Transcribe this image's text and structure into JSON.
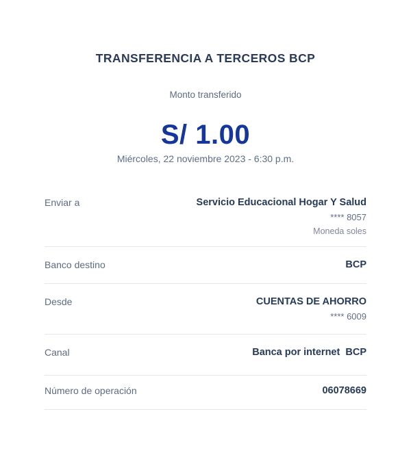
{
  "header": {
    "title": "TRANSFERENCIA A TERCEROS BCP"
  },
  "amount_section": {
    "label": "Monto transferido",
    "amount": "S/ 1.00",
    "datetime": "Miércoles, 22 noviembre 2023 - 6:30 p.m."
  },
  "details": {
    "rows": [
      {
        "label": "Enviar a",
        "value": "Servicio Educacional Hogar Y Salud",
        "secondary": "**** 8057",
        "tertiary": "Moneda soles"
      },
      {
        "label": "Banco destino",
        "value": "BCP"
      },
      {
        "label": "Desde",
        "value": "CUENTAS DE AHORRO",
        "secondary": "**** 6009"
      },
      {
        "label": "Canal",
        "value": "Banca por internet  BCP"
      },
      {
        "label": "Número de operación",
        "value": "06078669"
      }
    ]
  },
  "colors": {
    "title_navy": "#2b3a58",
    "amount_blue": "#15379c",
    "muted_label": "#5d6b82",
    "value_navy": "#273a58",
    "secondary_text": "#5f7089",
    "tertiary_text": "#7e8899",
    "divider": "#e4e6ea",
    "background": "#ffffff"
  }
}
